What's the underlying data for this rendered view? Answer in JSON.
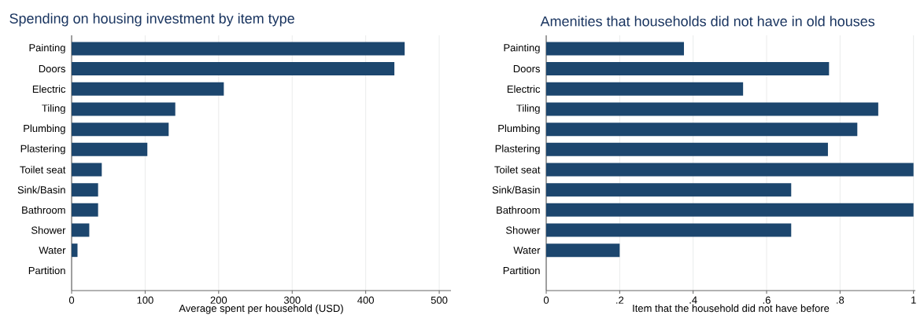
{
  "chart_data": [
    {
      "type": "bar",
      "orientation": "horizontal",
      "title": "Spending on housing investment by item type",
      "xlabel": "Average spent per household (USD)",
      "categories": [
        "Painting",
        "Doors",
        "Electric",
        "Tiling",
        "Plumbing",
        "Plastering",
        "Toilet seat",
        "Sink/Basin",
        "Bathroom",
        "Shower",
        "Water",
        "Partition"
      ],
      "values": [
        453,
        439,
        207,
        141,
        132,
        103,
        41,
        36,
        36,
        24,
        8,
        0
      ],
      "color": "#1c466e",
      "xlim": [
        0,
        516
      ],
      "xticks": [
        0,
        100,
        200,
        300,
        400,
        500
      ],
      "grid": "x"
    },
    {
      "type": "bar",
      "orientation": "horizontal",
      "title": "Amenities that households did not have in old houses",
      "xlabel": "Item that the household did not have before",
      "categories": [
        "Painting",
        "Doors",
        "Electric",
        "Tiling",
        "Plumbing",
        "Plastering",
        "Toilet seat",
        "Sink/Basin",
        "Bathroom",
        "Shower",
        "Water",
        "Partition"
      ],
      "values": [
        0.375,
        0.77,
        0.536,
        0.904,
        0.847,
        0.767,
        1.0,
        0.667,
        1.0,
        0.667,
        0.2,
        0
      ],
      "color": "#1c466e",
      "xlim": [
        0,
        1.005
      ],
      "xticks": [
        0,
        {
          "value": 0.2,
          "label": ".2"
        },
        {
          "value": 0.4,
          "label": ".4"
        },
        {
          "value": 0.6,
          "label": ".6"
        },
        {
          "value": 0.8,
          "label": ".8"
        },
        1
      ],
      "grid": "x"
    }
  ]
}
